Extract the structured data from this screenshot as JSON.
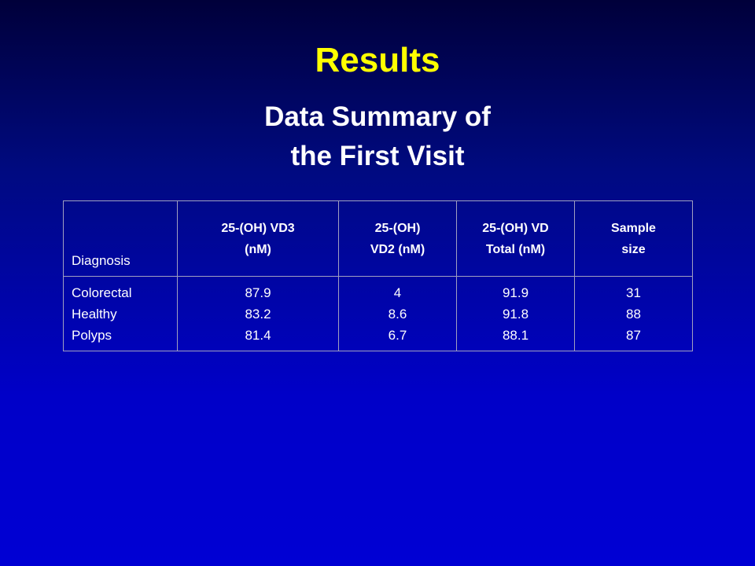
{
  "slide": {
    "title": "Results",
    "subtitle": [
      "Data Summary of",
      "the First Visit"
    ],
    "table": {
      "header": [
        [
          "Diagnosis"
        ],
        [
          "25-(OH) VD3",
          "(nM)"
        ],
        [
          "25-(OH)",
          "VD2 (nM)"
        ],
        [
          "25-(OH) VD",
          "Total (nM)"
        ],
        [
          "Sample",
          "size"
        ]
      ],
      "rows": [
        [
          "Colorectal",
          87.9,
          4,
          91.9,
          31
        ],
        [
          "Healthy",
          83.2,
          8.6,
          91.8,
          88
        ],
        [
          "Polyps",
          81.4,
          6.7,
          88.1,
          87
        ]
      ]
    }
  }
}
